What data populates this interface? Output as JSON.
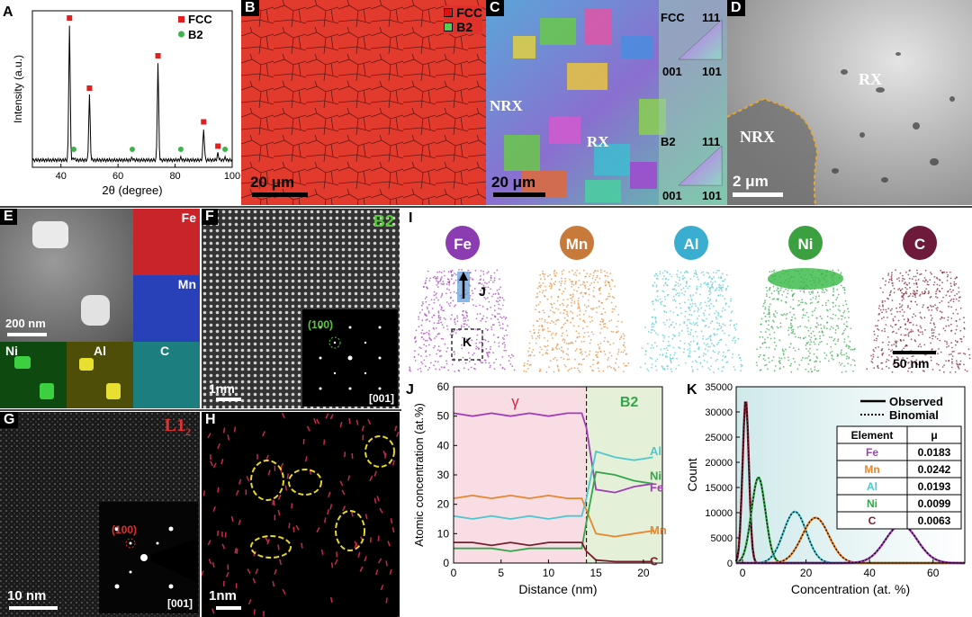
{
  "panels": {
    "A": {
      "label": "A"
    },
    "B": {
      "label": "B",
      "scale": "20 μm",
      "legend": [
        "FCC",
        "B2"
      ]
    },
    "C": {
      "label": "C",
      "scale": "20 μm",
      "regions": [
        "NRX",
        "RX"
      ],
      "key1": {
        "phase": "FCC",
        "ticks": [
          "111",
          "001",
          "101"
        ]
      },
      "key2": {
        "phase": "B2",
        "ticks": [
          "111",
          "001",
          "101"
        ]
      }
    },
    "D": {
      "label": "D",
      "scale": "2 μm",
      "regions": [
        "NRX",
        "RX"
      ]
    },
    "E": {
      "label": "E",
      "scale": "200 nm",
      "maps": [
        "Fe",
        "Mn",
        "Ni",
        "Al",
        "C"
      ]
    },
    "F": {
      "label": "F",
      "phase": "B2",
      "scale": "1nm",
      "inset": {
        "spot": "(100)",
        "zone": "[001]"
      }
    },
    "G": {
      "label": "G",
      "phase": "L1",
      "phase_sub": "2",
      "scale": "10 nm",
      "inset": {
        "spot": "(100)",
        "zone": "[001]"
      }
    },
    "H": {
      "label": "H",
      "scale": "1nm"
    },
    "I": {
      "label": "I",
      "elements": [
        "Fe",
        "Mn",
        "Al",
        "Ni",
        "C"
      ],
      "markers": [
        "J",
        "K"
      ],
      "scale": "50 nm"
    },
    "J": {
      "label": "J",
      "regions": [
        "γ",
        "B2"
      ],
      "series_labels": [
        "Al",
        "Ni",
        "Fe",
        "Mn",
        "C"
      ]
    },
    "K": {
      "label": "K",
      "legend": [
        "Observed",
        "Binomial"
      ],
      "table": {
        "headers": [
          "Element",
          "μ"
        ],
        "rows": [
          [
            "Fe",
            "0.0183"
          ],
          [
            "Mn",
            "0.0242"
          ],
          [
            "Al",
            "0.0193"
          ],
          [
            "Ni",
            "0.0099"
          ],
          [
            "C",
            "0.0063"
          ]
        ]
      }
    }
  },
  "chart_data": [
    {
      "type": "line",
      "panel": "A",
      "xlabel": "2θ (degree)",
      "ylabel": "Intensity (a.u.)",
      "xlim": [
        30,
        100
      ],
      "xticks": [
        40,
        60,
        80,
        100
      ],
      "legend": [
        "FCC",
        "B2"
      ],
      "peaks_fcc": [
        43.0,
        50.0,
        74.0,
        90.0,
        95.0
      ],
      "peak_heights_fcc": [
        1.0,
        0.48,
        0.72,
        0.23,
        0.05
      ],
      "peaks_b2": [
        44.5,
        65.0,
        82.0,
        97.5
      ]
    },
    {
      "type": "line",
      "panel": "J",
      "xlabel": "Distance (nm)",
      "ylabel": "Atomic concentration (at.%)",
      "xlim": [
        0,
        22
      ],
      "ylim": [
        0,
        60
      ],
      "xticks": [
        0,
        5,
        10,
        15,
        20
      ],
      "yticks": [
        0,
        10,
        20,
        30,
        40,
        50,
        60
      ],
      "interface_x": 14,
      "series": [
        {
          "name": "Fe",
          "color": "#a23cb8",
          "x": [
            0,
            2,
            4,
            6,
            8,
            10,
            12,
            13.5,
            14,
            15,
            17,
            19,
            21
          ],
          "y": [
            51,
            50,
            51,
            50,
            51,
            50,
            51,
            51,
            46,
            25,
            24,
            26,
            27
          ]
        },
        {
          "name": "Mn",
          "color": "#e8862d",
          "x": [
            0,
            2,
            4,
            6,
            8,
            10,
            12,
            13.5,
            14,
            15,
            17,
            19,
            21
          ],
          "y": [
            22,
            23,
            22,
            23,
            22,
            23,
            22,
            22,
            18,
            10,
            9,
            10,
            11
          ]
        },
        {
          "name": "Al",
          "color": "#4fc7cf",
          "x": [
            0,
            2,
            4,
            6,
            8,
            10,
            12,
            13.5,
            14,
            15,
            17,
            19,
            21
          ],
          "y": [
            16,
            15,
            16,
            15,
            16,
            15,
            16,
            16,
            22,
            38,
            36,
            35,
            36
          ]
        },
        {
          "name": "Ni",
          "color": "#35a54a",
          "x": [
            0,
            2,
            4,
            6,
            8,
            10,
            12,
            13.5,
            14,
            15,
            17,
            19,
            21
          ],
          "y": [
            5,
            5,
            5,
            4,
            5,
            5,
            5,
            5,
            14,
            31,
            30,
            28,
            27
          ]
        },
        {
          "name": "C",
          "color": "#7a1e2e",
          "x": [
            0,
            2,
            4,
            6,
            8,
            10,
            12,
            13.5,
            14,
            15,
            17,
            19,
            21
          ],
          "y": [
            7,
            7,
            6,
            7,
            6,
            7,
            7,
            7,
            4,
            1,
            0.5,
            0.5,
            0.5
          ]
        }
      ]
    },
    {
      "type": "line",
      "panel": "K",
      "xlabel": "Concentration (at. %)",
      "ylabel": "Count",
      "xlim": [
        -2,
        70
      ],
      "ylim": [
        0,
        35000
      ],
      "xticks": [
        0,
        20,
        40,
        60
      ],
      "yticks": [
        0,
        5000,
        10000,
        15000,
        20000,
        25000,
        30000,
        35000
      ],
      "legend": [
        "Observed",
        "Binomial"
      ],
      "series": [
        {
          "name": "C",
          "color": "#7a1e2e",
          "mu": 1,
          "sigma": 1.0,
          "peak": 32500
        },
        {
          "name": "Ni",
          "color": "#35a54a",
          "mu": 5,
          "sigma": 2.2,
          "peak": 17000
        },
        {
          "name": "Al",
          "color": "#4fc7cf",
          "mu": 16.5,
          "sigma": 3.6,
          "peak": 10200
        },
        {
          "name": "Mn",
          "color": "#e8862d",
          "mu": 23,
          "sigma": 4.2,
          "peak": 9000
        },
        {
          "name": "Fe",
          "color": "#a23cb8",
          "mu": 50,
          "sigma": 5.0,
          "peak": 7600
        }
      ]
    }
  ]
}
